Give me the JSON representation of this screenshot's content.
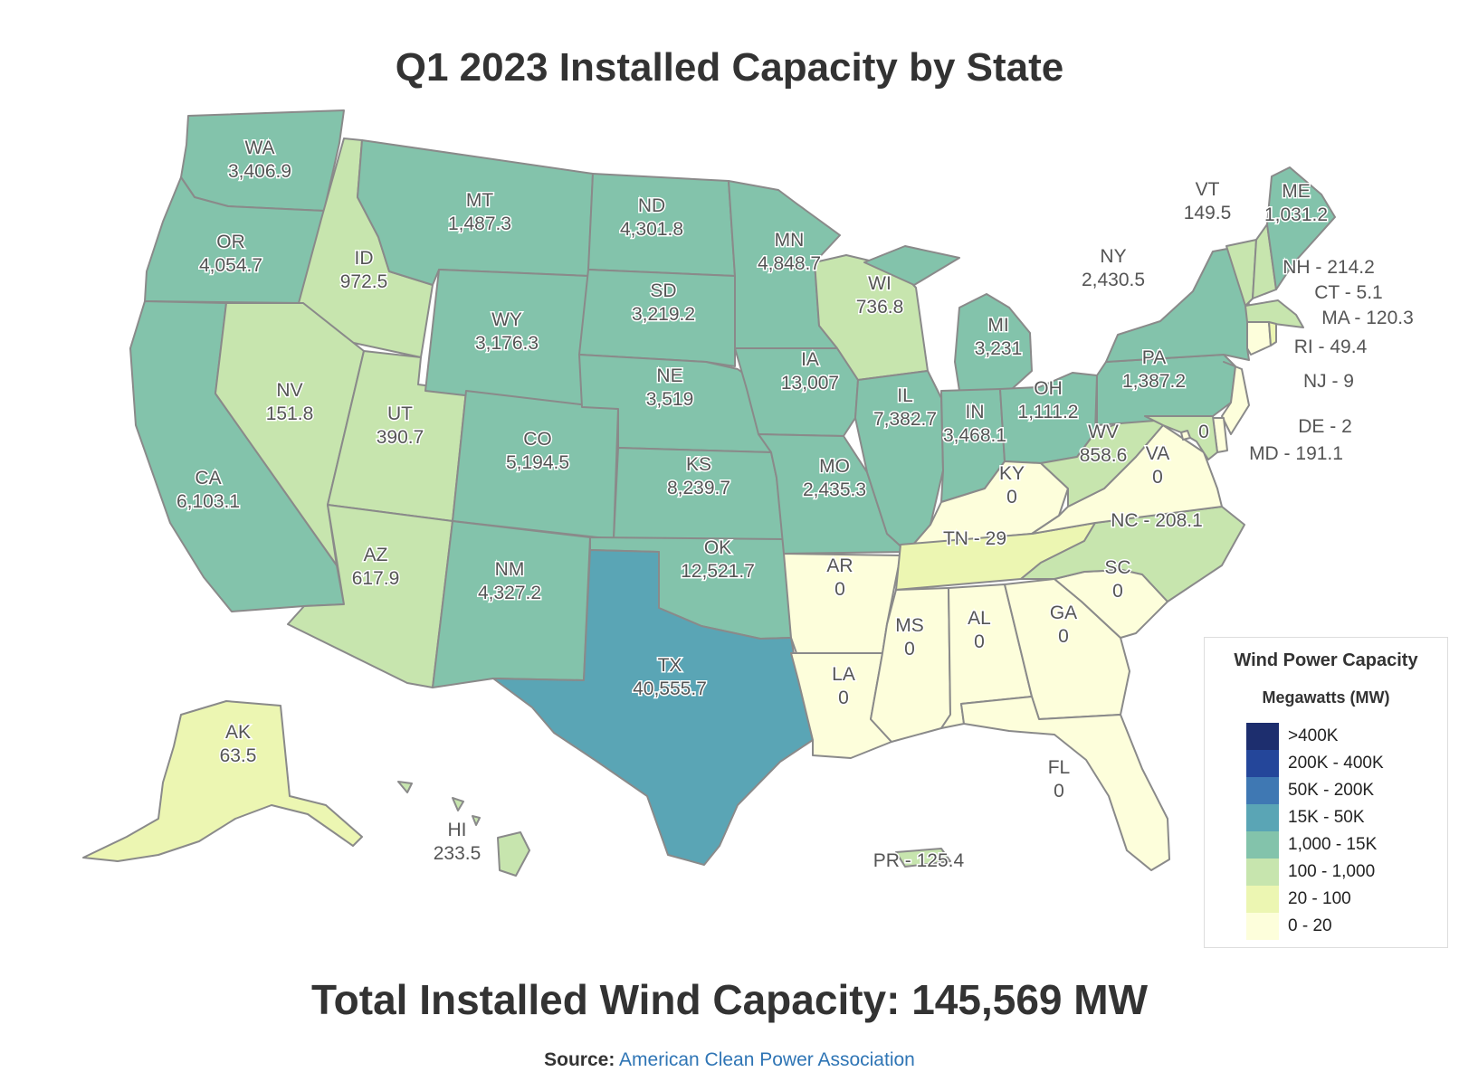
{
  "title": "Q1 2023 Installed Capacity by State",
  "total": "Total Installed Wind Capacity: 145,569 MW",
  "source": {
    "label": "Source:",
    "link_text": "American Clean Power Association"
  },
  "legend": {
    "title": "Wind Power Capacity",
    "subtitle": "Megawatts (MW)",
    "items": [
      {
        "label": ">400K",
        "color": "#1d2e6e"
      },
      {
        "label": "200K - 400K",
        "color": "#24469a"
      },
      {
        "label": "50K - 200K",
        "color": "#3f78b3"
      },
      {
        "label": "15K - 50K",
        "color": "#5aa5b5"
      },
      {
        "label": "1,000 - 15K",
        "color": "#83c3ab"
      },
      {
        "label": "100 - 1,000",
        "color": "#c7e5ae"
      },
      {
        "label": "20 - 100",
        "color": "#ecf6b2"
      },
      {
        "label": "0 - 20",
        "color": "#fdfedb"
      }
    ]
  },
  "states": {
    "WA": {
      "label": "WA",
      "value": "3,406.9",
      "bin": 4
    },
    "OR": {
      "label": "OR",
      "value": "4,054.7",
      "bin": 4
    },
    "CA": {
      "label": "CA",
      "value": "6,103.1",
      "bin": 4
    },
    "ID": {
      "label": "ID",
      "value": "972.5",
      "bin": 5
    },
    "NV": {
      "label": "NV",
      "value": "151.8",
      "bin": 5
    },
    "UT": {
      "label": "UT",
      "value": "390.7",
      "bin": 5
    },
    "AZ": {
      "label": "AZ",
      "value": "617.9",
      "bin": 5
    },
    "MT": {
      "label": "MT",
      "value": "1,487.3",
      "bin": 4
    },
    "WY": {
      "label": "WY",
      "value": "3,176.3",
      "bin": 4
    },
    "CO": {
      "label": "CO",
      "value": "5,194.5",
      "bin": 4
    },
    "NM": {
      "label": "NM",
      "value": "4,327.2",
      "bin": 4
    },
    "ND": {
      "label": "ND",
      "value": "4,301.8",
      "bin": 4
    },
    "SD": {
      "label": "SD",
      "value": "3,219.2",
      "bin": 4
    },
    "NE": {
      "label": "NE",
      "value": "3,519",
      "bin": 4
    },
    "KS": {
      "label": "KS",
      "value": "8,239.7",
      "bin": 4
    },
    "OK": {
      "label": "OK",
      "value": "12,521.7",
      "bin": 4
    },
    "TX": {
      "label": "TX",
      "value": "40,555.7",
      "bin": 3
    },
    "MN": {
      "label": "MN",
      "value": "4,848.7",
      "bin": 4
    },
    "IA": {
      "label": "IA",
      "value": "13,007",
      "bin": 4
    },
    "MO": {
      "label": "MO",
      "value": "2,435.3",
      "bin": 4
    },
    "AR": {
      "label": "AR",
      "value": "0",
      "bin": 7
    },
    "LA": {
      "label": "LA",
      "value": "0",
      "bin": 7
    },
    "WI": {
      "label": "WI",
      "value": "736.8",
      "bin": 5
    },
    "IL": {
      "label": "IL",
      "value": "7,382.7",
      "bin": 4
    },
    "MI": {
      "label": "MI",
      "value": "3,231",
      "bin": 4
    },
    "IN": {
      "label": "IN",
      "value": "3,468.1",
      "bin": 4
    },
    "OH": {
      "label": "OH",
      "value": "1,111.2",
      "bin": 4
    },
    "KY": {
      "label": "KY",
      "value": "0",
      "bin": 7
    },
    "TN": {
      "label": "TN - 29",
      "value": "",
      "bin": 6
    },
    "MS": {
      "label": "MS",
      "value": "0",
      "bin": 7
    },
    "AL": {
      "label": "AL",
      "value": "0",
      "bin": 7
    },
    "GA": {
      "label": "GA",
      "value": "0",
      "bin": 7
    },
    "FL": {
      "label": "FL",
      "value": "0",
      "bin": 7
    },
    "SC": {
      "label": "SC",
      "value": "0",
      "bin": 7
    },
    "NC": {
      "label": "NC - 208.1",
      "value": "",
      "bin": 5
    },
    "VA": {
      "label": "VA",
      "value": "0",
      "bin": 7
    },
    "WV": {
      "label": "WV",
      "value": "858.6",
      "bin": 5
    },
    "PA": {
      "label": "PA",
      "value": "1,387.2",
      "bin": 4
    },
    "NY": {
      "label": "NY",
      "value": "2,430.5",
      "bin": 4
    },
    "VT": {
      "label": "VT",
      "value": "149.5",
      "bin": 5
    },
    "NH": {
      "label": "NH - 214.2",
      "value": "",
      "bin": 5
    },
    "ME": {
      "label": "ME",
      "value": "1,031.2",
      "bin": 4
    },
    "MA": {
      "label": "MA - 120.3",
      "value": "",
      "bin": 5
    },
    "CT": {
      "label": "CT - 5.1",
      "value": "",
      "bin": 7
    },
    "RI": {
      "label": "RI - 49.4",
      "value": "",
      "bin": 6
    },
    "NJ": {
      "label": "NJ - 9",
      "value": "",
      "bin": 7
    },
    "DE": {
      "label": "DE - 2",
      "value": "",
      "bin": 7
    },
    "MD": {
      "label": "MD - 191.1",
      "value": "",
      "bin": 5
    },
    "DC": {
      "label": "0",
      "value": "",
      "bin": 7
    },
    "AK": {
      "label": "AK",
      "value": "63.5",
      "bin": 6
    },
    "HI": {
      "label": "HI",
      "value": "233.5",
      "bin": 5
    },
    "PR": {
      "label": "PR - 125.4",
      "value": "",
      "bin": 5
    }
  }
}
